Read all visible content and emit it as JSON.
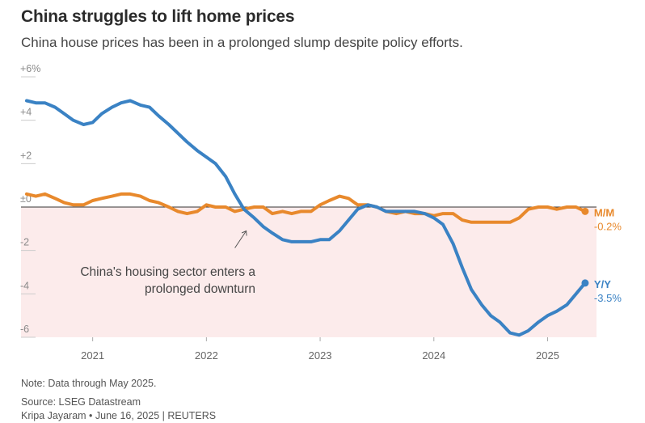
{
  "header": {
    "title": "China struggles to lift home prices",
    "subtitle": "China house prices has been in a prolonged slump despite policy efforts."
  },
  "footer": {
    "note": "Note: Data through May 2025.",
    "source": "Source: LSEG Datastream",
    "byline": "Kripa Jayaram • June 16, 2025 | REUTERS"
  },
  "chart_data": {
    "type": "line",
    "title": "China struggles to lift home prices",
    "xlabel": "",
    "ylabel": "",
    "ylim": [
      -6,
      6
    ],
    "xlim": [
      2020.37,
      2025.43
    ],
    "y_ticks": [
      6,
      4,
      2,
      0,
      -2,
      -4,
      -6
    ],
    "y_tick_labels": [
      "+6%",
      "+4",
      "+2",
      "±0",
      "-2",
      "-4",
      "-6"
    ],
    "x_ticks": [
      2021,
      2022,
      2023,
      2024,
      2025
    ],
    "x_tick_labels": [
      "2021",
      "2022",
      "2023",
      "2024",
      "2025"
    ],
    "negative_shading": true,
    "annotation": {
      "lines": [
        "China's housing sector enters a",
        "prolonged downturn"
      ],
      "arrow_to": [
        2022.35,
        -1.1
      ]
    },
    "series": [
      {
        "name": "Y/Y",
        "color": "#3a82c4",
        "end_label": "Y/Y",
        "end_value_label": "-3.5%",
        "x": [
          2020.42,
          2020.5,
          2020.58,
          2020.67,
          2020.75,
          2020.83,
          2020.92,
          2021.0,
          2021.08,
          2021.17,
          2021.25,
          2021.33,
          2021.42,
          2021.5,
          2021.58,
          2021.67,
          2021.75,
          2021.83,
          2021.92,
          2022.0,
          2022.08,
          2022.17,
          2022.25,
          2022.33,
          2022.42,
          2022.5,
          2022.58,
          2022.67,
          2022.75,
          2022.83,
          2022.92,
          2023.0,
          2023.08,
          2023.17,
          2023.25,
          2023.33,
          2023.42,
          2023.5,
          2023.58,
          2023.67,
          2023.75,
          2023.83,
          2023.92,
          2024.0,
          2024.08,
          2024.17,
          2024.25,
          2024.33,
          2024.42,
          2024.5,
          2024.58,
          2024.67,
          2024.75,
          2024.83,
          2024.92,
          2025.0,
          2025.08,
          2025.17,
          2025.25,
          2025.33
        ],
        "values": [
          4.9,
          4.8,
          4.8,
          4.6,
          4.3,
          4.0,
          3.8,
          3.9,
          4.3,
          4.6,
          4.8,
          4.9,
          4.7,
          4.6,
          4.2,
          3.8,
          3.4,
          3.0,
          2.6,
          2.3,
          2.0,
          1.4,
          0.6,
          -0.1,
          -0.5,
          -0.9,
          -1.2,
          -1.5,
          -1.6,
          -1.6,
          -1.6,
          -1.5,
          -1.5,
          -1.1,
          -0.6,
          -0.1,
          0.1,
          0.0,
          -0.2,
          -0.2,
          -0.2,
          -0.2,
          -0.3,
          -0.5,
          -0.8,
          -1.7,
          -2.8,
          -3.8,
          -4.5,
          -5.0,
          -5.3,
          -5.8,
          -5.9,
          -5.7,
          -5.3,
          -5.0,
          -4.8,
          -4.5,
          -4.0,
          -3.5
        ]
      },
      {
        "name": "M/M",
        "color": "#e8892c",
        "end_label": "M/M",
        "end_value_label": "-0.2%",
        "x": [
          2020.42,
          2020.5,
          2020.58,
          2020.67,
          2020.75,
          2020.83,
          2020.92,
          2021.0,
          2021.08,
          2021.17,
          2021.25,
          2021.33,
          2021.42,
          2021.5,
          2021.58,
          2021.67,
          2021.75,
          2021.83,
          2021.92,
          2022.0,
          2022.08,
          2022.17,
          2022.25,
          2022.33,
          2022.42,
          2022.5,
          2022.58,
          2022.67,
          2022.75,
          2022.83,
          2022.92,
          2023.0,
          2023.08,
          2023.17,
          2023.25,
          2023.33,
          2023.42,
          2023.5,
          2023.58,
          2023.67,
          2023.75,
          2023.83,
          2023.92,
          2024.0,
          2024.08,
          2024.17,
          2024.25,
          2024.33,
          2024.42,
          2024.5,
          2024.58,
          2024.67,
          2024.75,
          2024.83,
          2024.92,
          2025.0,
          2025.08,
          2025.17,
          2025.25,
          2025.33
        ],
        "values": [
          0.6,
          0.5,
          0.6,
          0.4,
          0.2,
          0.1,
          0.1,
          0.3,
          0.4,
          0.5,
          0.6,
          0.6,
          0.5,
          0.3,
          0.2,
          0.0,
          -0.2,
          -0.3,
          -0.2,
          0.1,
          0.0,
          0.0,
          -0.2,
          -0.1,
          0.0,
          0.0,
          -0.3,
          -0.2,
          -0.3,
          -0.2,
          -0.2,
          0.1,
          0.3,
          0.5,
          0.4,
          0.1,
          0.1,
          0.0,
          -0.2,
          -0.3,
          -0.2,
          -0.3,
          -0.3,
          -0.4,
          -0.3,
          -0.3,
          -0.6,
          -0.7,
          -0.7,
          -0.7,
          -0.7,
          -0.7,
          -0.5,
          -0.1,
          0.0,
          0.0,
          -0.1,
          0.0,
          0.0,
          -0.2
        ]
      }
    ]
  }
}
